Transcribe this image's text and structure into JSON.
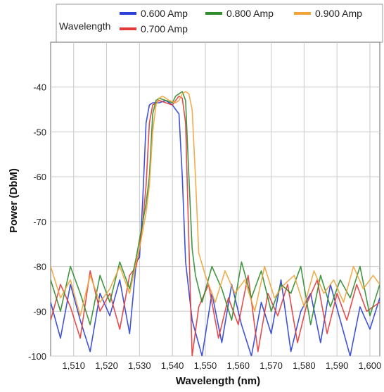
{
  "chart_data": {
    "type": "line",
    "title": "",
    "xlabel": "Wavelength (nm)",
    "ylabel": "Power (DbM)",
    "xlim": [
      1503,
      1603
    ],
    "ylim": [
      -100,
      -30
    ],
    "xticks": [
      1510,
      1520,
      1530,
      1540,
      1550,
      1560,
      1570,
      1580,
      1590,
      1600
    ],
    "xtick_labels": [
      "1,510",
      "1,520",
      "1,530",
      "1,540",
      "1,550",
      "1,560",
      "1,570",
      "1,580",
      "1,590",
      "1,600"
    ],
    "yticks": [
      -100,
      -90,
      -80,
      -70,
      -60,
      -50,
      -40
    ],
    "ytick_labels": [
      "-100",
      "-90",
      "-80",
      "-70",
      "-60",
      "-50",
      "-40"
    ],
    "grid": true,
    "legend": {
      "title": "Wavelength",
      "placement": "top"
    },
    "series": [
      {
        "name": "0.600 Amp",
        "color": "#2b3fd6",
        "x": [
          1503,
          1506,
          1509,
          1512,
          1515,
          1518,
          1521,
          1524,
          1527,
          1529,
          1530,
          1531,
          1532,
          1533,
          1534,
          1536,
          1538,
          1540,
          1541,
          1542,
          1543,
          1544,
          1546,
          1549,
          1552,
          1555,
          1558,
          1561,
          1564,
          1567,
          1570,
          1573,
          1576,
          1579,
          1582,
          1585,
          1588,
          1591,
          1594,
          1597,
          1600,
          1603
        ],
        "y": [
          -88,
          -96,
          -84,
          -92,
          -99,
          -86,
          -91,
          -83,
          -95,
          -79,
          -78,
          -65,
          -48,
          -44,
          -43.5,
          -43.5,
          -43,
          -44,
          -45,
          -46,
          -60,
          -79,
          -92,
          -100,
          -86,
          -97,
          -84,
          -93,
          -100,
          -88,
          -95,
          -83,
          -99,
          -90,
          -86,
          -97,
          -84,
          -92,
          -100,
          -89,
          -94,
          -87
        ]
      },
      {
        "name": "0.700 Amp",
        "color": "#e23a3a",
        "x": [
          1503,
          1506,
          1509,
          1512,
          1515,
          1518,
          1521,
          1524,
          1527,
          1529,
          1530,
          1531,
          1532,
          1533,
          1534,
          1536,
          1538,
          1540,
          1541,
          1542,
          1543,
          1544,
          1545,
          1546,
          1548,
          1551,
          1554,
          1557,
          1560,
          1563,
          1566,
          1569,
          1572,
          1575,
          1578,
          1581,
          1584,
          1587,
          1590,
          1593,
          1596,
          1599,
          1603
        ],
        "y": [
          -92,
          -84,
          -89,
          -96,
          -81,
          -90,
          -86,
          -94,
          -82,
          -80,
          -76,
          -70,
          -62,
          -48,
          -44,
          -43,
          -43.5,
          -44,
          -43,
          -42,
          -42.5,
          -48,
          -75,
          -100,
          -89,
          -84,
          -96,
          -87,
          -93,
          -82,
          -99,
          -86,
          -91,
          -84,
          -97,
          -88,
          -83,
          -95,
          -86,
          -92,
          -84,
          -90,
          -88
        ]
      },
      {
        "name": "0.800 Amp",
        "color": "#2e8b2e",
        "x": [
          1503,
          1506,
          1509,
          1512,
          1515,
          1518,
          1521,
          1524,
          1527,
          1529,
          1530,
          1531,
          1532,
          1533,
          1534,
          1535,
          1536,
          1538,
          1540,
          1541,
          1542,
          1543,
          1544,
          1545,
          1546,
          1547,
          1549,
          1552,
          1555,
          1558,
          1561,
          1564,
          1567,
          1570,
          1573,
          1576,
          1579,
          1582,
          1585,
          1588,
          1591,
          1594,
          1597,
          1600,
          1603
        ],
        "y": [
          -83,
          -90,
          -80,
          -86,
          -93,
          -82,
          -88,
          -79,
          -85,
          -78,
          -74,
          -70,
          -66,
          -60,
          -46,
          -43,
          -42.5,
          -43,
          -43.5,
          -42,
          -41.5,
          -41,
          -43,
          -60,
          -76,
          -82,
          -88,
          -80,
          -85,
          -92,
          -79,
          -87,
          -81,
          -90,
          -84,
          -86,
          -80,
          -93,
          -82,
          -89,
          -83,
          -87,
          -80,
          -91,
          -84
        ]
      },
      {
        "name": "0.900 Amp",
        "color": "#f0a43a",
        "x": [
          1503,
          1506,
          1509,
          1512,
          1515,
          1518,
          1521,
          1524,
          1527,
          1529,
          1530,
          1531,
          1532,
          1533,
          1534,
          1535,
          1536,
          1537,
          1539,
          1541,
          1542,
          1543,
          1544,
          1545,
          1546,
          1547,
          1548,
          1550,
          1553,
          1556,
          1559,
          1562,
          1565,
          1568,
          1571,
          1574,
          1577,
          1580,
          1583,
          1586,
          1589,
          1592,
          1595,
          1598,
          1601,
          1603
        ],
        "y": [
          -80,
          -87,
          -83,
          -91,
          -82,
          -88,
          -85,
          -80,
          -86,
          -79,
          -76,
          -72,
          -68,
          -62,
          -50,
          -44,
          -42.5,
          -42,
          -43,
          -43.5,
          -43,
          -41.5,
          -41,
          -41.5,
          -45,
          -60,
          -77,
          -82,
          -88,
          -81,
          -86,
          -83,
          -90,
          -80,
          -87,
          -84,
          -82,
          -89,
          -81,
          -86,
          -83,
          -88,
          -80,
          -85,
          -82,
          -84
        ]
      }
    ]
  }
}
